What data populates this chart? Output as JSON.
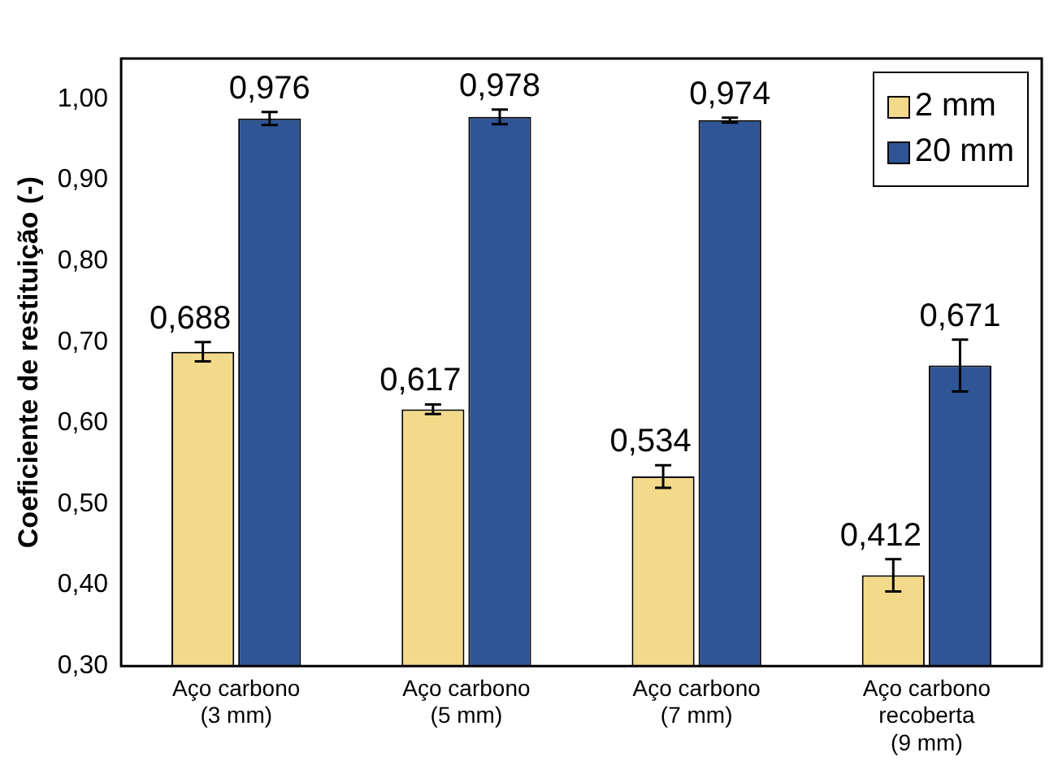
{
  "chart_data": {
    "type": "bar",
    "ylabel": "Coeficiente de restituição (-)",
    "categories": [
      "Aço carbono\n(3 mm)",
      "Aço carbono\n(5 mm)",
      "Aço carbono\n(7 mm)",
      "Aço carbono\nrecoberta\n(9 mm)"
    ],
    "series": [
      {
        "name": "2 mm",
        "color": "#f3d98a",
        "values": [
          0.688,
          0.617,
          0.534,
          0.412
        ],
        "errors": [
          0.012,
          0.006,
          0.014,
          0.02
        ],
        "value_labels": [
          "0,688",
          "0,617",
          "0,534",
          "0,412"
        ]
      },
      {
        "name": "20 mm",
        "color": "#2f5597",
        "values": [
          0.976,
          0.978,
          0.974,
          0.671
        ],
        "errors": [
          0.008,
          0.009,
          0.003,
          0.032
        ],
        "value_labels": [
          "0,976",
          "0,978",
          "0,974",
          "0,671"
        ]
      }
    ],
    "ylim": [
      0.3,
      1.05
    ],
    "yticks": [
      {
        "value": 0.3,
        "label": "0,30"
      },
      {
        "value": 0.4,
        "label": "0,40"
      },
      {
        "value": 0.5,
        "label": "0,50"
      },
      {
        "value": 0.6,
        "label": "0,60"
      },
      {
        "value": 0.7,
        "label": "0,70"
      },
      {
        "value": 0.8,
        "label": "0,80"
      },
      {
        "value": 0.9,
        "label": "0,90"
      },
      {
        "value": 1.0,
        "label": "1,00"
      }
    ],
    "grid": false,
    "legend": "top right"
  }
}
